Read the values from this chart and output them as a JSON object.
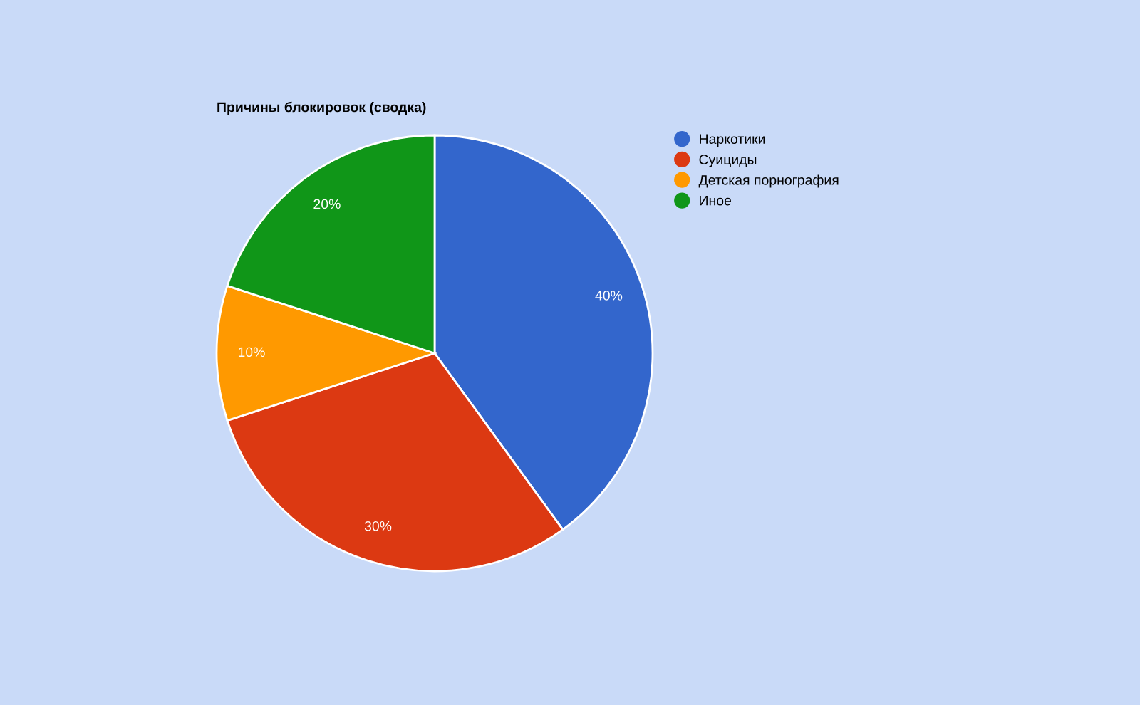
{
  "chart_data": {
    "type": "pie",
    "title": "Причины блокировок (сводка)",
    "categories": [
      "Наркотики",
      "Суициды",
      "Детская порнография",
      "Иное"
    ],
    "values": [
      40,
      30,
      10,
      20
    ],
    "value_labels": [
      "40%",
      "30%",
      "10%",
      "20%"
    ],
    "colors": [
      "#3366cc",
      "#dc3912",
      "#ff9900",
      "#109618"
    ],
    "legend": "right"
  }
}
